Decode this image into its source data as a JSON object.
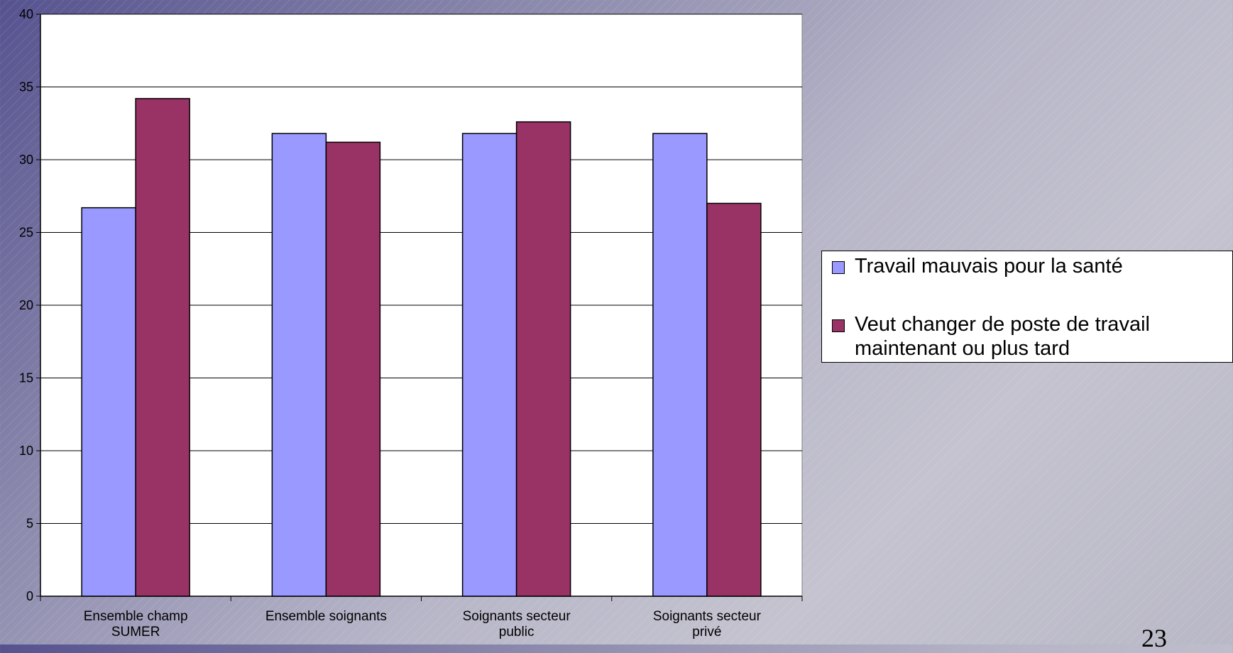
{
  "chart_data": {
    "type": "bar",
    "categories": [
      [
        "Ensemble champ",
        "SUMER"
      ],
      [
        "Ensemble soignants"
      ],
      [
        "Soignants secteur",
        "public"
      ],
      [
        "Soignants secteur",
        "privé"
      ]
    ],
    "series": [
      {
        "name": "Travail mauvais pour la santé",
        "values": [
          26.7,
          31.8,
          31.8,
          31.8
        ],
        "color": "#9999ff"
      },
      {
        "name": "Veut changer de poste de travail maintenant ou plus tard",
        "values": [
          34.2,
          31.2,
          32.6,
          27.0
        ],
        "color": "#993366"
      }
    ],
    "ylim": [
      0,
      40
    ],
    "yticks": [
      0,
      5,
      10,
      15,
      20,
      25,
      30,
      35,
      40
    ],
    "grid": true,
    "legend_placement": "right"
  },
  "legend": {
    "item1": "Travail mauvais pour la santé",
    "item2_line1": "Veut changer de poste de travail",
    "item2_line2": "maintenant ou plus tard"
  },
  "slide_number": "23"
}
